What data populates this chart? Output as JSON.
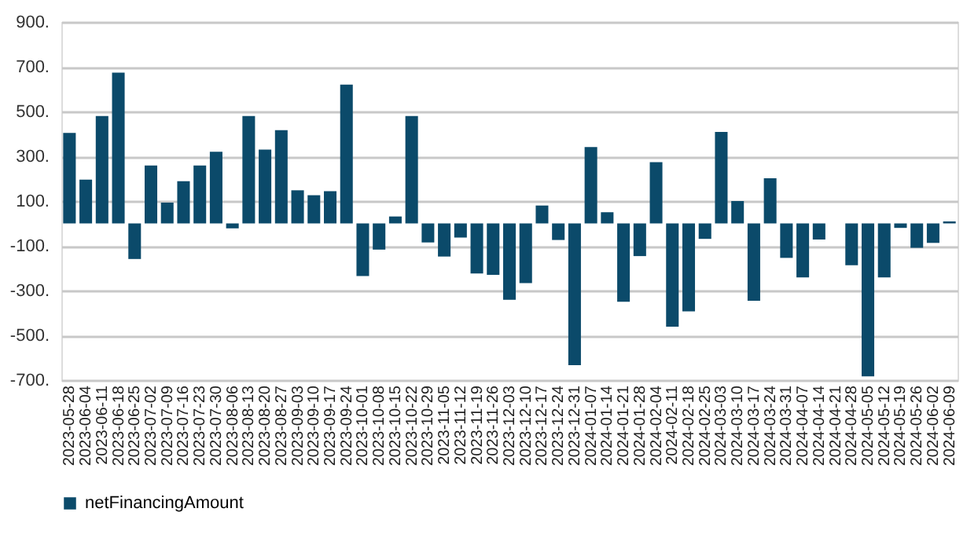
{
  "chart_data": {
    "type": "bar",
    "categories": [
      "2023-05-28",
      "2023-06-04",
      "2023-06-11",
      "2023-06-18",
      "2023-06-25",
      "2023-07-02",
      "2023-07-09",
      "2023-07-16",
      "2023-07-23",
      "2023-07-30",
      "2023-08-06",
      "2023-08-13",
      "2023-08-20",
      "2023-08-27",
      "2023-09-03",
      "2023-09-10",
      "2023-09-17",
      "2023-09-24",
      "2023-10-01",
      "2023-10-08",
      "2023-10-15",
      "2023-10-22",
      "2023-10-29",
      "2023-11-05",
      "2023-11-12",
      "2023-11-19",
      "2023-11-26",
      "2023-12-03",
      "2023-12-10",
      "2023-12-17",
      "2023-12-24",
      "2023-12-31",
      "2024-01-07",
      "2024-01-14",
      "2024-01-21",
      "2024-01-28",
      "2024-02-04",
      "2024-02-11",
      "2024-02-18",
      "2024-02-25",
      "2024-03-03",
      "2024-03-10",
      "2024-03-17",
      "2024-03-24",
      "2024-03-31",
      "2024-04-07",
      "2024-04-14",
      "2024-04-21",
      "2024-04-28",
      "2024-05-05",
      "2024-05-12",
      "2024-05-19",
      "2024-05-26",
      "2024-06-02",
      "2024-06-09"
    ],
    "series": [
      {
        "name": "netFinancingAmount",
        "color": "#0b4a6a",
        "values": [
          404,
          196,
          480,
          674,
          -159,
          259,
          93,
          189,
          259,
          320,
          -22,
          480,
          330,
          417,
          148,
          126,
          144,
          620,
          -235,
          -117,
          31,
          480,
          -85,
          -148,
          -63,
          -224,
          -230,
          -341,
          -267,
          80,
          -74,
          -633,
          341,
          50,
          -350,
          -146,
          274,
          -461,
          -393,
          -69,
          409,
          100,
          -346,
          202,
          -154,
          -241,
          -72,
          0,
          -187,
          -683,
          -241,
          -20,
          -109,
          -87,
          9
        ]
      }
    ],
    "ylim": [
      -700,
      900
    ],
    "yticks": [
      {
        "value": -700,
        "label": "-700."
      },
      {
        "value": -500,
        "label": "-500."
      },
      {
        "value": -300,
        "label": "-300."
      },
      {
        "value": -100,
        "label": "-100."
      },
      {
        "value": 100,
        "label": "100."
      },
      {
        "value": 300,
        "label": "300."
      },
      {
        "value": 500,
        "label": "500."
      },
      {
        "value": 700,
        "label": "700."
      },
      {
        "value": 900,
        "label": "900."
      }
    ],
    "grid": "y",
    "legend": "bottom"
  }
}
